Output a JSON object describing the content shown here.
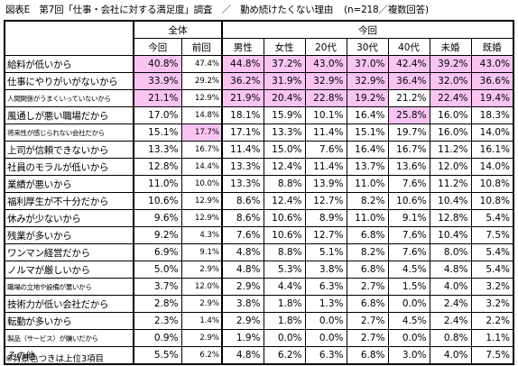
{
  "caption": {
    "title": "図表E　第7回「仕事・会社に対する満足度」調査　／　勤め続けたくない理由",
    "note": "(n=218／複数回答)"
  },
  "header": {
    "group_total": "全体",
    "group_current": "今回",
    "col_current": "今回",
    "col_previous": "前回",
    "col_male": "男性",
    "col_female": "女性",
    "col_20s": "20代",
    "col_30s": "30代",
    "col_40s": "40代",
    "col_single": "未婚",
    "col_married": "既婚"
  },
  "rows": [
    {
      "label": "給料が低いから",
      "small": false,
      "values": [
        "40.8%",
        "47.4%",
        "44.8%",
        "37.2%",
        "43.0%",
        "37.0%",
        "42.4%",
        "39.2%",
        "43.0%"
      ],
      "highlight": [
        true,
        false,
        true,
        true,
        true,
        true,
        true,
        true,
        true
      ]
    },
    {
      "label": "仕事にやりがいがないから",
      "small": false,
      "values": [
        "33.9%",
        "29.2%",
        "36.2%",
        "31.9%",
        "32.9%",
        "32.9%",
        "36.4%",
        "32.0%",
        "36.6%"
      ],
      "highlight": [
        true,
        false,
        true,
        true,
        true,
        true,
        true,
        true,
        true
      ]
    },
    {
      "label": "人間関係がうまくいっていないから",
      "small": true,
      "values": [
        "21.1%",
        "12.9%",
        "21.9%",
        "20.4%",
        "22.8%",
        "19.2%",
        "21.2%",
        "22.4%",
        "19.4%"
      ],
      "highlight": [
        true,
        false,
        true,
        true,
        true,
        true,
        false,
        true,
        true
      ]
    },
    {
      "label": "風通しが悪い職場だから",
      "small": false,
      "values": [
        "17.0%",
        "14.8%",
        "18.1%",
        "15.9%",
        "10.1%",
        "16.4%",
        "25.8%",
        "16.0%",
        "18.3%"
      ],
      "highlight": [
        false,
        false,
        false,
        false,
        false,
        false,
        true,
        false,
        false
      ]
    },
    {
      "label": "将来性が感じられない会社だから",
      "small": true,
      "values": [
        "15.1%",
        "17.7%",
        "17.1%",
        "13.3%",
        "11.4%",
        "15.1%",
        "19.7%",
        "16.0%",
        "14.0%"
      ],
      "highlight": [
        false,
        true,
        false,
        false,
        false,
        false,
        false,
        false,
        false
      ]
    },
    {
      "label": "上司が信頼できないから",
      "small": false,
      "values": [
        "13.3%",
        "16.7%",
        "11.4%",
        "15.0%",
        "7.6%",
        "16.4%",
        "16.7%",
        "11.2%",
        "16.1%"
      ],
      "highlight": [
        false,
        false,
        false,
        false,
        false,
        false,
        false,
        false,
        false
      ]
    },
    {
      "label": "社員のモラルが低いから",
      "small": false,
      "values": [
        "12.8%",
        "14.4%",
        "13.3%",
        "12.4%",
        "11.4%",
        "13.7%",
        "13.6%",
        "12.0%",
        "14.0%"
      ],
      "highlight": [
        false,
        false,
        false,
        false,
        false,
        false,
        false,
        false,
        false
      ]
    },
    {
      "label": "業績が悪いから",
      "small": false,
      "values": [
        "11.0%",
        "10.0%",
        "13.3%",
        "8.8%",
        "13.9%",
        "11.0%",
        "7.6%",
        "11.2%",
        "10.8%"
      ],
      "highlight": [
        false,
        false,
        false,
        false,
        false,
        false,
        false,
        false,
        false
      ]
    },
    {
      "label": "福利厚生が不十分だから",
      "small": false,
      "values": [
        "10.6%",
        "12.9%",
        "8.6%",
        "12.4%",
        "12.7%",
        "8.2%",
        "10.6%",
        "10.4%",
        "10.8%"
      ],
      "highlight": [
        false,
        false,
        false,
        false,
        false,
        false,
        false,
        false,
        false
      ]
    },
    {
      "label": "休みが少ないから",
      "small": false,
      "values": [
        "9.6%",
        "12.9%",
        "8.6%",
        "10.6%",
        "8.9%",
        "11.0%",
        "9.1%",
        "12.8%",
        "5.4%"
      ],
      "highlight": [
        false,
        false,
        false,
        false,
        false,
        false,
        false,
        false,
        false
      ]
    },
    {
      "label": "残業が多いから",
      "small": false,
      "values": [
        "9.2%",
        "4.3%",
        "7.6%",
        "10.6%",
        "12.7%",
        "6.8%",
        "7.6%",
        "10.4%",
        "7.5%"
      ],
      "highlight": [
        false,
        false,
        false,
        false,
        false,
        false,
        false,
        false,
        false
      ]
    },
    {
      "label": "ワンマン経営だから",
      "small": false,
      "values": [
        "6.9%",
        "9.1%",
        "4.8%",
        "8.8%",
        "5.1%",
        "8.2%",
        "7.6%",
        "8.0%",
        "5.4%"
      ],
      "highlight": [
        false,
        false,
        false,
        false,
        false,
        false,
        false,
        false,
        false
      ]
    },
    {
      "label": "ノルマが厳しいから",
      "small": false,
      "values": [
        "5.0%",
        "2.9%",
        "4.8%",
        "5.3%",
        "3.8%",
        "6.8%",
        "4.5%",
        "4.8%",
        "5.4%"
      ],
      "highlight": [
        false,
        false,
        false,
        false,
        false,
        false,
        false,
        false,
        false
      ]
    },
    {
      "label": "職場の立地や設備が悪いから",
      "small": true,
      "values": [
        "3.7%",
        "12.0%",
        "2.9%",
        "4.4%",
        "6.3%",
        "2.7%",
        "1.5%",
        "4.0%",
        "3.2%"
      ],
      "highlight": [
        false,
        false,
        false,
        false,
        false,
        false,
        false,
        false,
        false
      ]
    },
    {
      "label": "技術力が低い会社だから",
      "small": false,
      "values": [
        "2.8%",
        "2.9%",
        "3.8%",
        "1.8%",
        "1.3%",
        "6.8%",
        "0.0%",
        "2.4%",
        "3.2%"
      ],
      "highlight": [
        false,
        false,
        false,
        false,
        false,
        false,
        false,
        false,
        false
      ]
    },
    {
      "label": "転勤が多いから",
      "small": false,
      "values": [
        "2.3%",
        "1.4%",
        "2.9%",
        "1.8%",
        "0.0%",
        "2.7%",
        "4.5%",
        "2.4%",
        "2.2%"
      ],
      "highlight": [
        false,
        false,
        false,
        false,
        false,
        false,
        false,
        false,
        false
      ]
    },
    {
      "label": "製品（サービス）が嫌いだから",
      "small": true,
      "values": [
        "0.9%",
        "2.9%",
        "1.9%",
        "0.0%",
        "0.0%",
        "2.7%",
        "0.0%",
        "0.8%",
        "1.1%"
      ],
      "highlight": [
        false,
        false,
        false,
        false,
        false,
        false,
        false,
        false,
        false
      ]
    },
    {
      "label": "その他",
      "small": false,
      "values": [
        "5.5%",
        "6.2%",
        "4.8%",
        "6.2%",
        "6.3%",
        "6.8%",
        "3.0%",
        "4.0%",
        "7.5%"
      ],
      "highlight": [
        false,
        false,
        false,
        false,
        false,
        false,
        false,
        false,
        false
      ]
    }
  ],
  "footer": "※背景色つきは上位3項目"
}
